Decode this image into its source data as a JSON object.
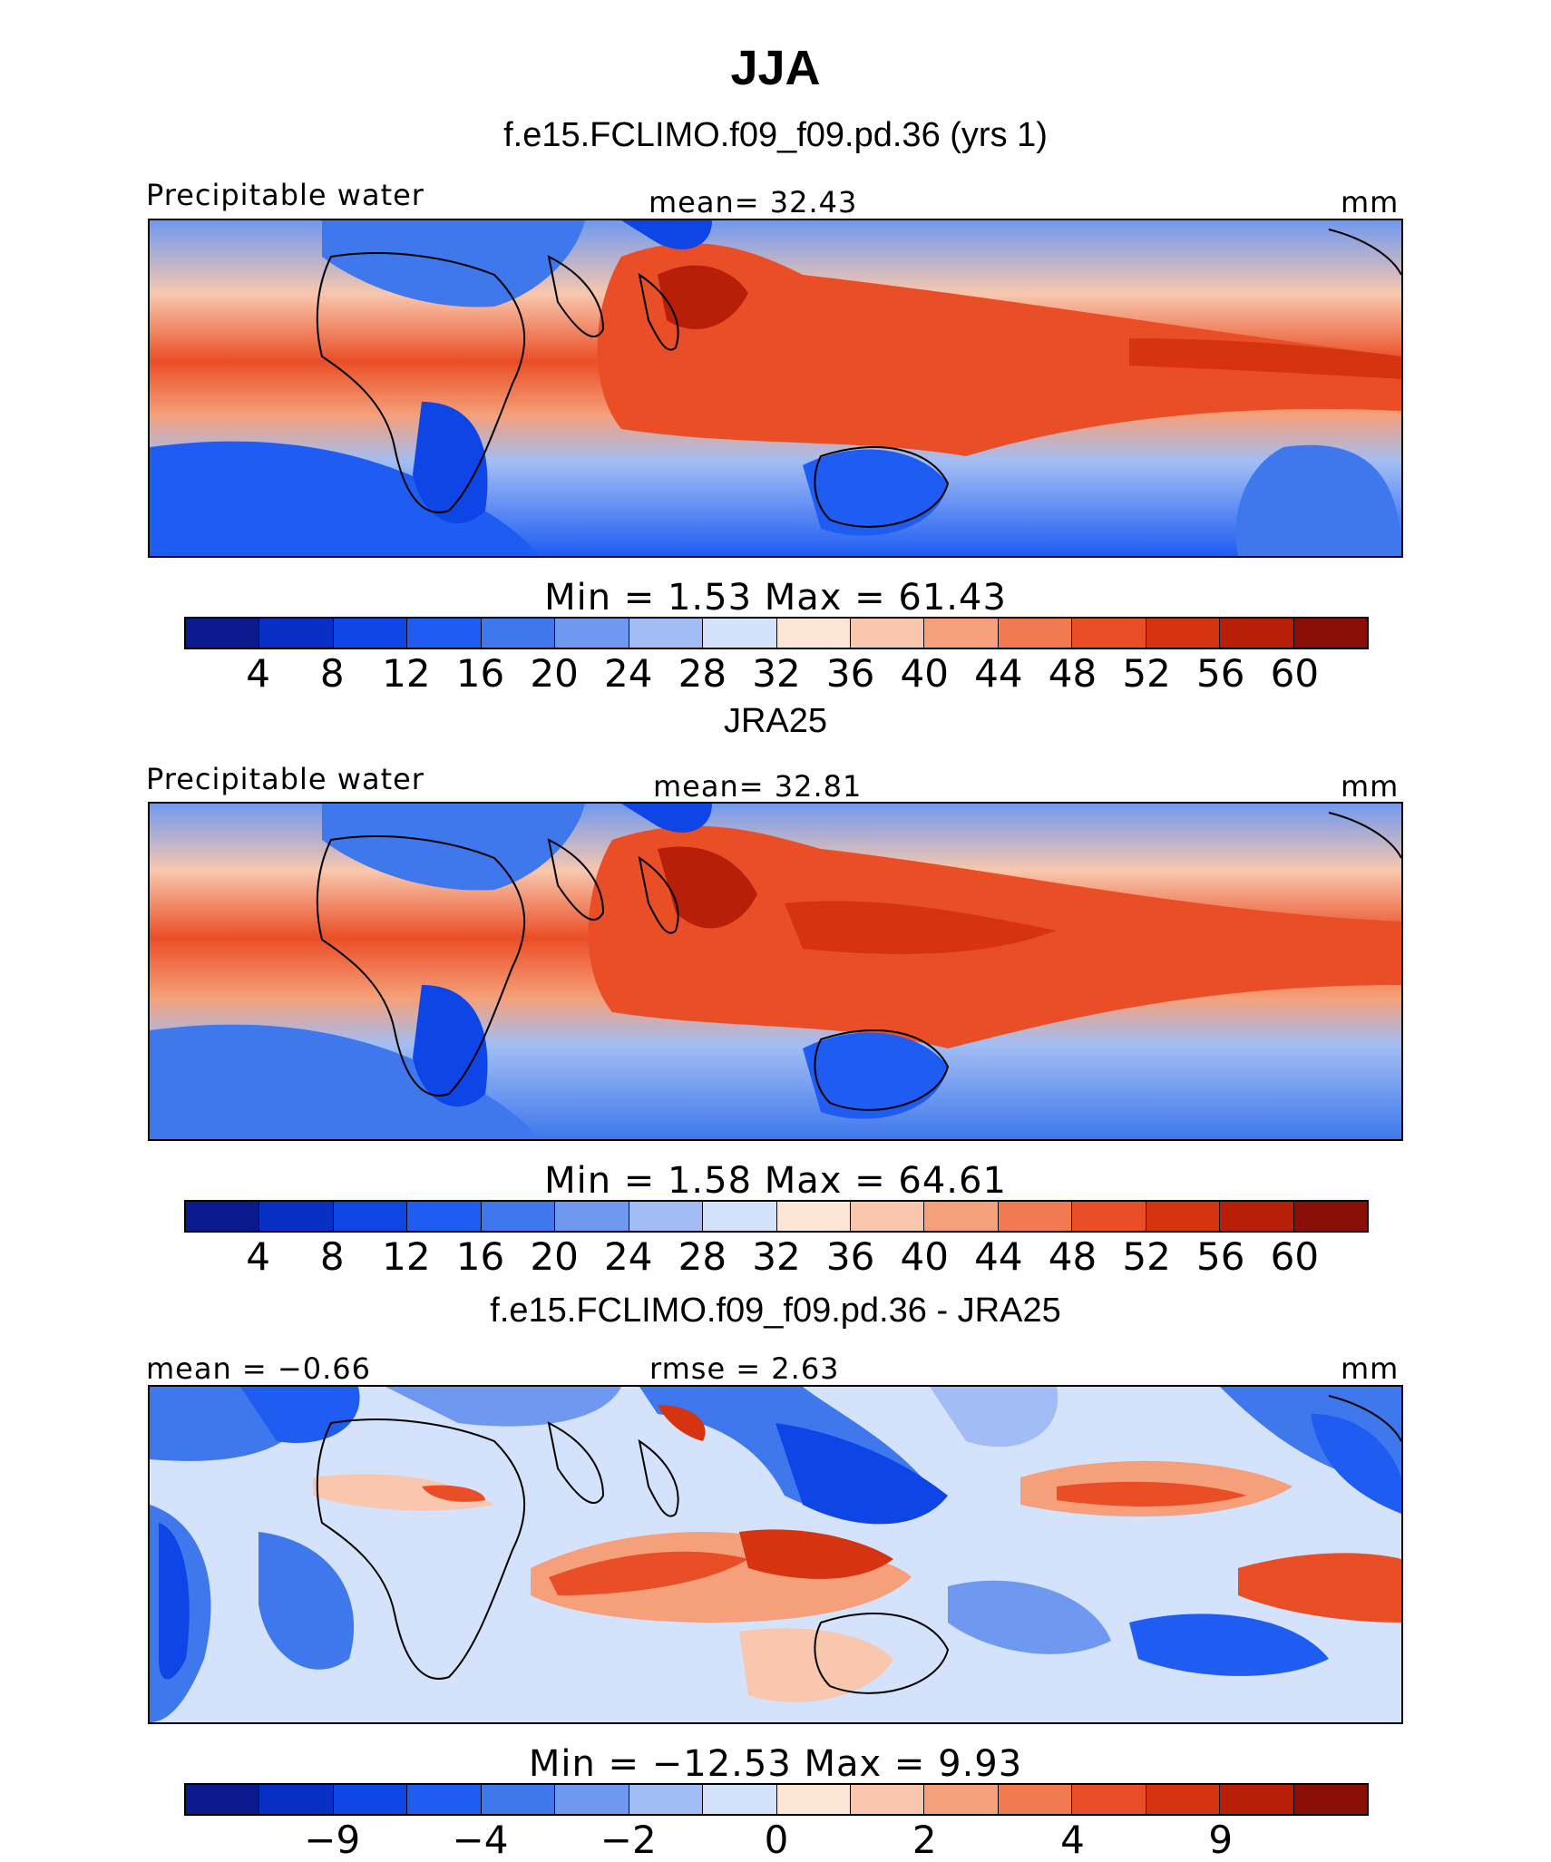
{
  "title": "JJA",
  "unit": "mm",
  "palettes": {
    "absolute": [
      "#0a1a8c",
      "#0a2fc4",
      "#0e45e6",
      "#1f5df2",
      "#3e78ec",
      "#6f99f0",
      "#a2bdf5",
      "#d4e3fb",
      "#fde6d6",
      "#f8c7ad",
      "#f5a07a",
      "#f27a50",
      "#ea4e26",
      "#d63410",
      "#b81f08",
      "#8a0f06"
    ],
    "difference": [
      "#0a1a8c",
      "#0a2fc4",
      "#0e45e6",
      "#1f5df2",
      "#3e78ec",
      "#6f99f0",
      "#a2bdf5",
      "#d4e3fb",
      "#fde6d6",
      "#f8c7ad",
      "#f5a07a",
      "#f27a50",
      "#ea4e26",
      "#d63410",
      "#b81f08",
      "#8a0f06"
    ]
  },
  "panels": [
    {
      "id": "model",
      "heading": "f.e15.FCLIMO.f09_f09.pd.36 (yrs 1)",
      "left_label": "Precipitable water",
      "center_label": "mean=   32.43",
      "right_label": "mm",
      "stats": "Min  =     1.53  Max  =   61.43",
      "ticks": [
        "4",
        "8",
        "12",
        "16",
        "20",
        "24",
        "28",
        "32",
        "36",
        "40",
        "44",
        "48",
        "52",
        "56",
        "60"
      ],
      "field": {
        "mean": 32.43,
        "min": 1.53,
        "max": 61.43
      }
    },
    {
      "id": "obs",
      "heading": "JRA25",
      "left_label": "Precipitable water",
      "center_label": "mean=   32.81",
      "right_label": "mm",
      "stats": "Min  =     1.58  Max  =   64.61",
      "ticks": [
        "4",
        "8",
        "12",
        "16",
        "20",
        "24",
        "28",
        "32",
        "36",
        "40",
        "44",
        "48",
        "52",
        "56",
        "60"
      ],
      "field": {
        "mean": 32.81,
        "min": 1.58,
        "max": 64.61
      }
    },
    {
      "id": "diff",
      "heading": "f.e15.FCLIMO.f09_f09.pd.36 - JRA25",
      "left_label": "mean =   −0.66",
      "center_label": "rmse =    2.63",
      "right_label": "mm",
      "stats": "Min  = −12.53  Max  =     9.93",
      "ticks": [
        "−9",
        "−4",
        "−2",
        "0",
        "2",
        "4",
        "9"
      ],
      "field": {
        "mean": -0.66,
        "rmse": 2.63,
        "min": -12.53,
        "max": 9.93
      }
    }
  ]
}
